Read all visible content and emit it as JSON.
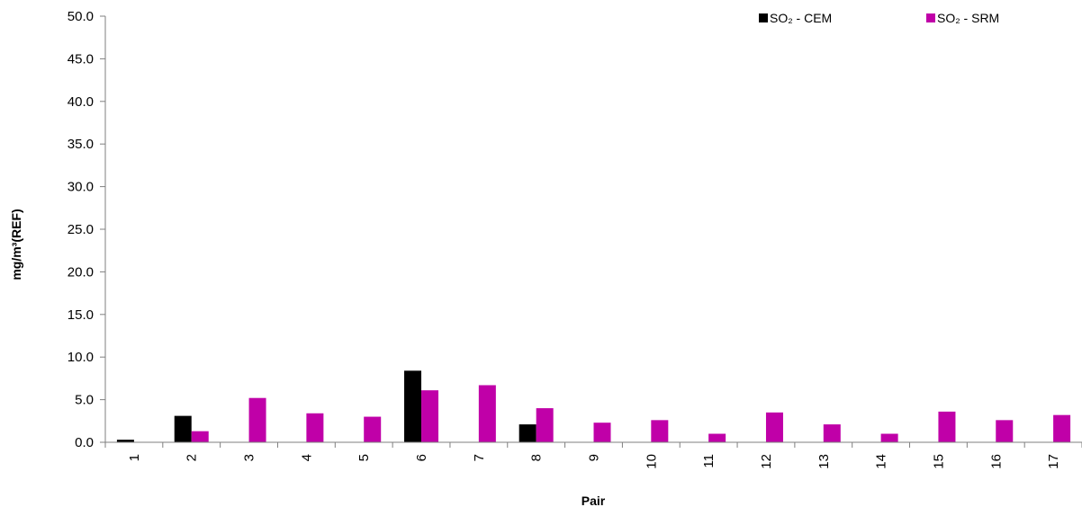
{
  "chart_data": {
    "type": "bar",
    "title": "",
    "xlabel": "Pair",
    "ylabel": "mg/m³(REF)",
    "ylim": [
      0,
      50
    ],
    "yticks": [
      "0.0",
      "5.0",
      "10.0",
      "15.0",
      "20.0",
      "25.0",
      "30.0",
      "35.0",
      "40.0",
      "45.0",
      "50.0"
    ],
    "grid": false,
    "legend_position": "top-right",
    "categories": [
      "1",
      "2",
      "3",
      "4",
      "5",
      "6",
      "7",
      "8",
      "9",
      "10",
      "11",
      "12",
      "13",
      "14",
      "15",
      "16",
      "17"
    ],
    "series": [
      {
        "name": "SO₂ - CEM",
        "color": "#000000",
        "values": [
          0.3,
          3.1,
          0,
          0,
          0,
          8.4,
          0,
          2.1,
          0,
          0,
          0,
          0,
          0,
          0,
          0,
          0,
          0
        ]
      },
      {
        "name": "SO₂ - SRM",
        "color": "#c000a8",
        "values": [
          0,
          1.3,
          5.2,
          3.4,
          3.0,
          6.1,
          6.7,
          4.0,
          2.3,
          2.6,
          1.0,
          3.5,
          2.1,
          1.0,
          3.6,
          2.6,
          3.2
        ]
      }
    ]
  }
}
